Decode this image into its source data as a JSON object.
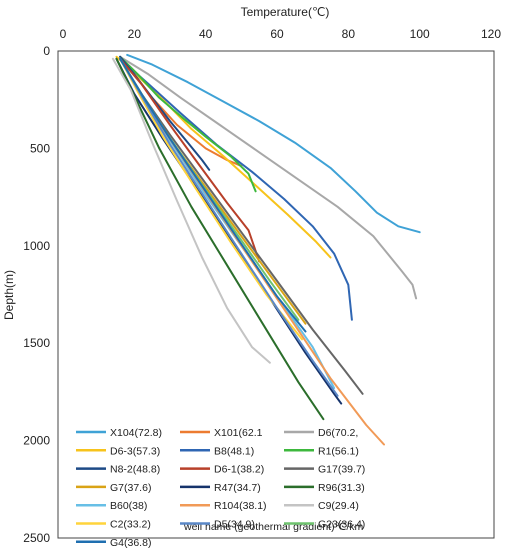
{
  "chart_data": {
    "type": "line",
    "xlabel": "Temperature(℃)",
    "ylabel": "Depth(m)",
    "x_axis_position": "top",
    "y_axis_inverted": true,
    "xlim": [
      0,
      120
    ],
    "ylim": [
      0,
      2500
    ],
    "xticks": [
      "0",
      "20",
      "40",
      "60",
      "80",
      "100",
      "120"
    ],
    "yticks": [
      "0",
      "500",
      "1000",
      "1500",
      "2000",
      "2500"
    ],
    "grid": false,
    "legend_placement": "bottom-left",
    "legend_note": "well name (geothermal gradient)℃/km",
    "series": [
      {
        "name": "X104(72.8)",
        "color": "#3fa2d6",
        "points": [
          [
            18,
            20
          ],
          [
            25,
            70
          ],
          [
            35,
            160
          ],
          [
            45,
            260
          ],
          [
            55,
            360
          ],
          [
            65,
            470
          ],
          [
            75,
            600
          ],
          [
            82,
            720
          ],
          [
            88,
            830
          ],
          [
            94,
            900
          ],
          [
            100,
            930
          ]
        ]
      },
      {
        "name": "X101(62.1",
        "color": "#ec7b30",
        "points": [
          [
            16,
            30
          ],
          [
            20,
            120
          ],
          [
            25,
            240
          ],
          [
            32,
            380
          ],
          [
            40,
            500
          ],
          [
            46,
            560
          ],
          [
            50,
            590
          ]
        ]
      },
      {
        "name": "D6(70.2,",
        "color": "#a8a8a8",
        "points": [
          [
            16,
            30
          ],
          [
            24,
            120
          ],
          [
            33,
            240
          ],
          [
            44,
            380
          ],
          [
            55,
            520
          ],
          [
            66,
            660
          ],
          [
            77,
            800
          ],
          [
            87,
            950
          ],
          [
            95,
            1130
          ],
          [
            98,
            1200
          ],
          [
            99,
            1270
          ]
        ]
      },
      {
        "name": "D6-3(57.3)",
        "color": "#f7c31b",
        "points": [
          [
            15,
            30
          ],
          [
            21,
            130
          ],
          [
            28,
            250
          ],
          [
            36,
            400
          ],
          [
            45,
            540
          ],
          [
            54,
            690
          ],
          [
            63,
            840
          ],
          [
            71,
            980
          ],
          [
            75,
            1060
          ]
        ]
      },
      {
        "name": "B8(48.1)",
        "color": "#2f66b3",
        "points": [
          [
            16,
            40
          ],
          [
            24,
            170
          ],
          [
            33,
            320
          ],
          [
            43,
            480
          ],
          [
            53,
            620
          ],
          [
            62,
            760
          ],
          [
            70,
            900
          ],
          [
            76,
            1040
          ],
          [
            80,
            1200
          ],
          [
            81,
            1380
          ]
        ]
      },
      {
        "name": "R1(56.1)",
        "color": "#3db83d",
        "points": [
          [
            16,
            30
          ],
          [
            21,
            120
          ],
          [
            27,
            240
          ],
          [
            34,
            350
          ],
          [
            40,
            440
          ],
          [
            47,
            540
          ],
          [
            52,
            630
          ],
          [
            54,
            720
          ]
        ]
      },
      {
        "name": "N8-2(48.8)",
        "color": "#1d4a86",
        "points": [
          [
            16,
            30
          ],
          [
            20,
            120
          ],
          [
            25,
            240
          ],
          [
            30,
            360
          ],
          [
            35,
            470
          ],
          [
            39,
            560
          ],
          [
            41,
            610
          ]
        ]
      },
      {
        "name": "D6-1(38.2)",
        "color": "#b8402a",
        "points": [
          [
            16,
            40
          ],
          [
            22,
            170
          ],
          [
            30,
            380
          ],
          [
            38,
            580
          ],
          [
            46,
            780
          ],
          [
            52,
            920
          ],
          [
            55,
            1080
          ]
        ]
      },
      {
        "name": "G17(39.7)",
        "color": "#666666",
        "points": [
          [
            16,
            40
          ],
          [
            22,
            220
          ],
          [
            30,
            430
          ],
          [
            40,
            680
          ],
          [
            50,
            930
          ],
          [
            60,
            1180
          ],
          [
            70,
            1430
          ],
          [
            79,
            1640
          ],
          [
            84,
            1760
          ]
        ]
      },
      {
        "name": "G7(37.6)",
        "color": "#d9a316",
        "points": [
          [
            16,
            40
          ],
          [
            22,
            220
          ],
          [
            30,
            450
          ],
          [
            40,
            700
          ],
          [
            50,
            950
          ],
          [
            60,
            1200
          ],
          [
            68,
            1400
          ]
        ]
      },
      {
        "name": "R47(34.7)",
        "color": "#16336b",
        "points": [
          [
            15,
            40
          ],
          [
            20,
            220
          ],
          [
            28,
            450
          ],
          [
            38,
            720
          ],
          [
            48,
            1000
          ],
          [
            58,
            1270
          ],
          [
            68,
            1550
          ],
          [
            76,
            1760
          ],
          [
            78,
            1810
          ]
        ]
      },
      {
        "name": "R96(31.3)",
        "color": "#2b6e2b",
        "points": [
          [
            15,
            40
          ],
          [
            20,
            230
          ],
          [
            27,
            500
          ],
          [
            36,
            800
          ],
          [
            46,
            1100
          ],
          [
            56,
            1400
          ],
          [
            66,
            1700
          ],
          [
            73,
            1890
          ]
        ]
      },
      {
        "name": "B60(38)",
        "color": "#67bfe6",
        "points": [
          [
            16,
            40
          ],
          [
            22,
            230
          ],
          [
            30,
            460
          ],
          [
            40,
            740
          ],
          [
            50,
            1000
          ],
          [
            60,
            1260
          ],
          [
            70,
            1520
          ],
          [
            76,
            1730
          ]
        ]
      },
      {
        "name": "R104(38.1)",
        "color": "#f19a57",
        "points": [
          [
            16,
            40
          ],
          [
            22,
            230
          ],
          [
            31,
            480
          ],
          [
            42,
            780
          ],
          [
            53,
            1080
          ],
          [
            64,
            1380
          ],
          [
            75,
            1680
          ],
          [
            85,
            1920
          ],
          [
            90,
            2020
          ]
        ]
      },
      {
        "name": "C9(29.4)",
        "color": "#c4c4c4",
        "points": [
          [
            14,
            40
          ],
          [
            19,
            200
          ],
          [
            25,
            470
          ],
          [
            32,
            770
          ],
          [
            39,
            1060
          ],
          [
            46,
            1320
          ],
          [
            53,
            1520
          ],
          [
            58,
            1600
          ]
        ]
      },
      {
        "name": "C2(33.2)",
        "color": "#ffd43b",
        "points": [
          [
            16,
            40
          ],
          [
            21,
            210
          ],
          [
            28,
            440
          ],
          [
            37,
            700
          ],
          [
            47,
            980
          ],
          [
            57,
            1250
          ],
          [
            67,
            1480
          ]
        ]
      },
      {
        "name": "D5(34.9)",
        "color": "#5b88c7",
        "points": [
          [
            16,
            40
          ],
          [
            22,
            230
          ],
          [
            30,
            480
          ],
          [
            40,
            760
          ],
          [
            50,
            1040
          ],
          [
            60,
            1320
          ],
          [
            70,
            1590
          ],
          [
            77,
            1770
          ]
        ]
      },
      {
        "name": "G23(36.4)",
        "color": "#6fc36f",
        "points": [
          [
            16,
            40
          ],
          [
            22,
            220
          ],
          [
            29,
            420
          ],
          [
            38,
            660
          ],
          [
            48,
            920
          ],
          [
            58,
            1180
          ],
          [
            66,
            1380
          ]
        ]
      },
      {
        "name": "G4(36.8)",
        "color": "#1f6fb0",
        "points": [
          [
            16,
            40
          ],
          [
            22,
            220
          ],
          [
            30,
            450
          ],
          [
            40,
            720
          ],
          [
            50,
            990
          ],
          [
            60,
            1260
          ],
          [
            68,
            1440
          ]
        ]
      }
    ]
  }
}
